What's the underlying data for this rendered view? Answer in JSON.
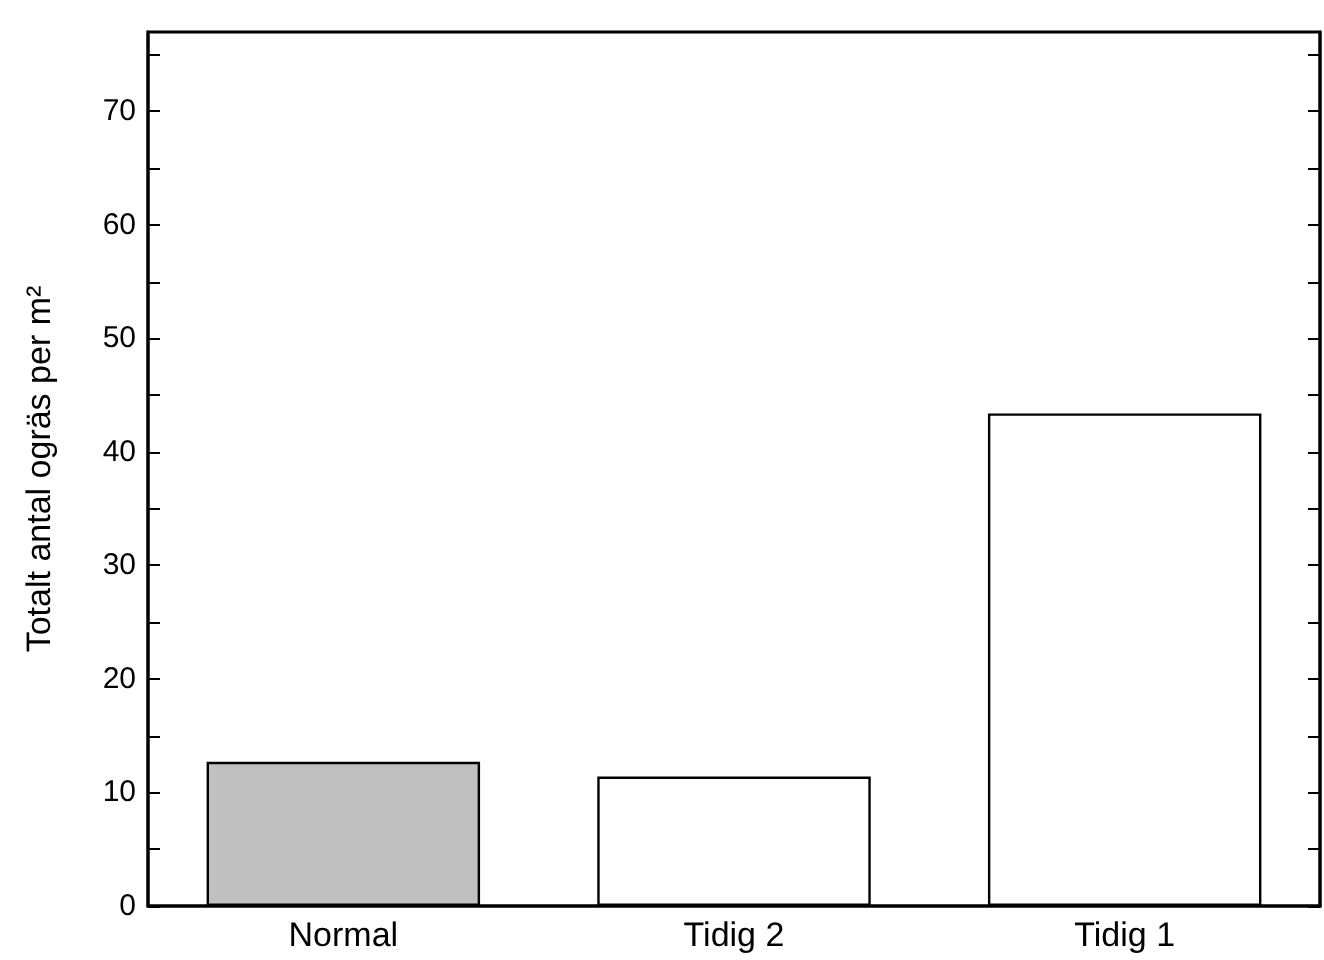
{
  "chart_data": {
    "type": "bar",
    "ylabel": "Totalt antal ogräs per m²",
    "categories": [
      "Normal",
      "Tidig 2",
      "Tidig 1"
    ],
    "values": [
      12.7,
      11.4,
      43.4
    ],
    "colors": [
      "#c0c0c0",
      "#ffffff",
      "#ffffff"
    ],
    "ylim": [
      0,
      77
    ],
    "yticks": [
      0,
      10,
      20,
      30,
      40,
      50,
      60,
      70
    ]
  }
}
